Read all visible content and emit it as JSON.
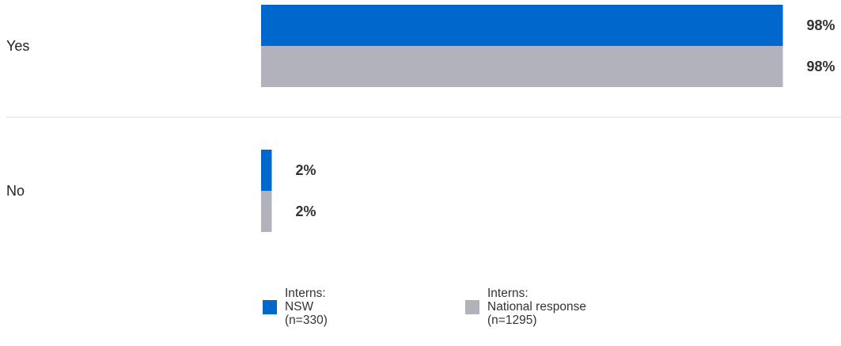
{
  "chart_data": {
    "type": "bar",
    "orientation": "horizontal",
    "categories": [
      "Yes",
      "No"
    ],
    "series": [
      {
        "key": "nsw",
        "legend_lines": [
          "Interns:",
          "NSW",
          "(n=330)"
        ],
        "color": "#0067cd",
        "values": [
          98,
          2
        ],
        "labels": [
          "98%",
          "2%"
        ]
      },
      {
        "key": "national",
        "legend_lines": [
          "Interns:",
          "National response",
          "(n=1295)"
        ],
        "color": "#b2b2bd",
        "values": [
          98,
          2
        ],
        "labels": [
          "98%",
          "2%"
        ]
      }
    ],
    "xlim": [
      0,
      100
    ],
    "unit": "%",
    "grid": false,
    "legend_position": "bottom"
  },
  "colors": {
    "separator": "#dddddd"
  }
}
